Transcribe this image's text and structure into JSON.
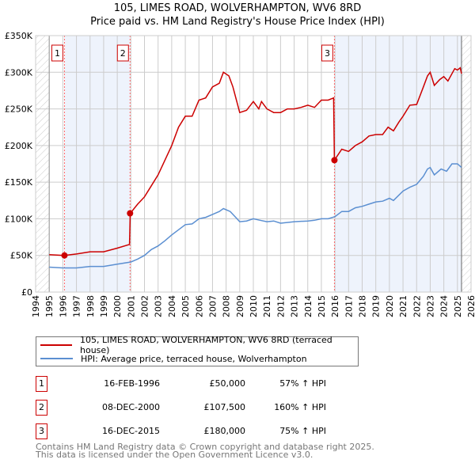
{
  "chart_data": {
    "type": "line",
    "title": "105, LIMES ROAD, WOLVERHAMPTON, WV6 8RD",
    "subtitle": "Price paid vs. HM Land Registry's House Price Index (HPI)",
    "xlim": [
      1994,
      2026
    ],
    "ylim": [
      0,
      350000
    ],
    "x_ticks": [
      "1994",
      "1995",
      "1996",
      "1997",
      "1998",
      "1999",
      "2000",
      "2001",
      "2002",
      "2003",
      "2004",
      "2005",
      "2006",
      "2007",
      "2008",
      "2009",
      "2010",
      "2011",
      "2012",
      "2013",
      "2014",
      "2015",
      "2016",
      "2017",
      "2018",
      "2019",
      "2020",
      "2021",
      "2022",
      "2023",
      "2024",
      "2025",
      "2026"
    ],
    "y_ticks": [
      {
        "v": 0,
        "label": "£0"
      },
      {
        "v": 50000,
        "label": "£50K"
      },
      {
        "v": 100000,
        "label": "£100K"
      },
      {
        "v": 150000,
        "label": "£150K"
      },
      {
        "v": 200000,
        "label": "£200K"
      },
      {
        "v": 250000,
        "label": "£250K"
      },
      {
        "v": 300000,
        "label": "£300K"
      },
      {
        "v": 350000,
        "label": "£350K"
      }
    ],
    "grid": true,
    "data_range": [
      1995,
      2025.3
    ],
    "series": [
      {
        "name": "105, LIMES ROAD, WOLVERHAMPTON, WV6 8RD (terraced house)",
        "color": "#cc0000",
        "x": [
          1995,
          1996.1,
          1997,
          1998,
          1999,
          2000,
          2000.9,
          2000.95,
          2001.5,
          2002,
          2002.5,
          2003,
          2003.5,
          2004,
          2004.5,
          2005,
          2005.5,
          2006,
          2006.5,
          2007,
          2007.5,
          2007.8,
          2008.2,
          2008.5,
          2009,
          2009.5,
          2010,
          2010.4,
          2010.6,
          2011,
          2011.5,
          2012,
          2012.5,
          2013,
          2013.5,
          2014,
          2014.5,
          2015,
          2015.5,
          2015.9,
          2015.96,
          2016.5,
          2017,
          2017.5,
          2018,
          2018.5,
          2019,
          2019.5,
          2019.9,
          2020.3,
          2020.7,
          2021,
          2021.5,
          2022,
          2022.5,
          2022.8,
          2023,
          2023.3,
          2023.7,
          2024,
          2024.3,
          2024.8,
          2025,
          2025.2,
          2025.3
        ],
        "y": [
          51000,
          50000,
          52000,
          55000,
          55000,
          60000,
          65000,
          107500,
          120000,
          130000,
          145000,
          160000,
          180000,
          200000,
          225000,
          240000,
          240000,
          262000,
          265000,
          280000,
          285000,
          300000,
          295000,
          280000,
          245000,
          248000,
          260000,
          250000,
          260000,
          250000,
          245000,
          245000,
          250000,
          250000,
          252000,
          255000,
          252000,
          262000,
          262000,
          265000,
          180000,
          195000,
          192000,
          200000,
          205000,
          213000,
          215000,
          215000,
          225000,
          220000,
          232000,
          240000,
          255000,
          256000,
          280000,
          295000,
          300000,
          282000,
          290000,
          294000,
          288000,
          305000,
          303000,
          306000,
          298000
        ]
      },
      {
        "name": "HPI: Average price, terraced house, Wolverhampton",
        "color": "#5b8fd1",
        "x": [
          1995,
          1996,
          1997,
          1998,
          1999,
          2000,
          2001,
          2001.5,
          2002,
          2002.5,
          2003,
          2003.5,
          2004,
          2004.5,
          2005,
          2005.5,
          2006,
          2006.5,
          2007,
          2007.5,
          2007.8,
          2008.3,
          2008.8,
          2009,
          2009.5,
          2010,
          2010.5,
          2011,
          2011.5,
          2012,
          2013,
          2014,
          2014.5,
          2015,
          2015.5,
          2016,
          2016.5,
          2017,
          2017.5,
          2018,
          2018.5,
          2019,
          2019.5,
          2020,
          2020.3,
          2021,
          2021.5,
          2022,
          2022.5,
          2022.8,
          2023,
          2023.3,
          2023.8,
          2024.2,
          2024.6,
          2025,
          2025.3
        ],
        "y": [
          34000,
          33000,
          33000,
          35000,
          35000,
          38000,
          41000,
          45000,
          50000,
          58000,
          63000,
          70000,
          78000,
          85000,
          92000,
          93000,
          100000,
          102000,
          106000,
          110000,
          114000,
          110000,
          100000,
          96000,
          97000,
          100000,
          98000,
          96000,
          97000,
          94000,
          96000,
          97000,
          98000,
          100000,
          100000,
          103000,
          110000,
          110000,
          115000,
          117000,
          120000,
          123000,
          124000,
          128000,
          125000,
          138000,
          143000,
          147000,
          158000,
          168000,
          170000,
          160000,
          168000,
          165000,
          175000,
          175000,
          170000
        ]
      }
    ],
    "sales": [
      {
        "num": "1",
        "x": 1996.12,
        "y": 50000,
        "date": "16-FEB-1996",
        "price": "£50,000",
        "hpi": "57% ↑ HPI"
      },
      {
        "num": "2",
        "x": 2000.94,
        "y": 107500,
        "date": "08-DEC-2000",
        "price": "£107,500",
        "hpi": "160% ↑ HPI"
      },
      {
        "num": "3",
        "x": 2015.96,
        "y": 180000,
        "date": "16-DEC-2015",
        "price": "£180,000",
        "hpi": "75% ↑ HPI"
      }
    ],
    "shade_color": "#eef3fc",
    "legend_position": "below"
  },
  "footer": [
    "Contains HM Land Registry data © Crown copyright and database right 2025.",
    "This data is licensed under the Open Government Licence v3.0."
  ]
}
